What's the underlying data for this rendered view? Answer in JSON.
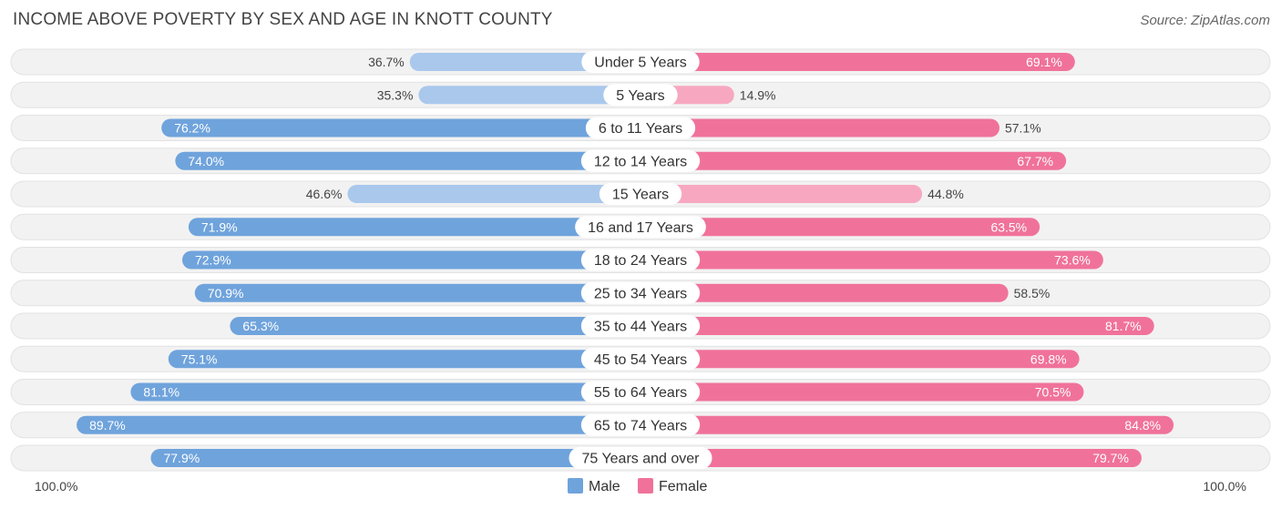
{
  "title": "INCOME ABOVE POVERTY BY SEX AND AGE IN KNOTT COUNTY",
  "source": "Source: ZipAtlas.com",
  "colors": {
    "male": "#6fa3dc",
    "male_light": "#a9c8ec",
    "female": "#f0729a",
    "female_light": "#f7a8c0",
    "track": "#ececec"
  },
  "chart_data": {
    "type": "bar",
    "orientation": "horizontal-diverging",
    "title": "INCOME ABOVE POVERTY BY SEX AND AGE IN KNOTT COUNTY",
    "categories": [
      "Under 5 Years",
      "5 Years",
      "6 to 11 Years",
      "12 to 14 Years",
      "15 Years",
      "16 and 17 Years",
      "18 to 24 Years",
      "25 to 34 Years",
      "35 to 44 Years",
      "45 to 54 Years",
      "55 to 64 Years",
      "65 to 74 Years",
      "75 Years and over"
    ],
    "series": [
      {
        "name": "Male",
        "values": [
          36.7,
          35.3,
          76.2,
          74.0,
          46.6,
          71.9,
          72.9,
          70.9,
          65.3,
          75.1,
          81.1,
          89.7,
          77.9
        ],
        "labels": [
          "36.7%",
          "35.3%",
          "76.2%",
          "74.0%",
          "46.6%",
          "71.9%",
          "72.9%",
          "70.9%",
          "65.3%",
          "75.1%",
          "81.1%",
          "89.7%",
          "77.9%"
        ]
      },
      {
        "name": "Female",
        "values": [
          69.1,
          14.9,
          57.1,
          67.7,
          44.8,
          63.5,
          73.6,
          58.5,
          81.7,
          69.8,
          70.5,
          84.8,
          79.7
        ],
        "labels": [
          "69.1%",
          "14.9%",
          "57.1%",
          "67.7%",
          "44.8%",
          "63.5%",
          "73.6%",
          "58.5%",
          "81.7%",
          "69.8%",
          "70.5%",
          "84.8%",
          "79.7%"
        ]
      }
    ],
    "xlim": [
      0,
      100
    ],
    "axis_left_label": "100.0%",
    "axis_right_label": "100.0%",
    "legend": [
      "Male",
      "Female"
    ],
    "legend_position": "bottom-center"
  }
}
